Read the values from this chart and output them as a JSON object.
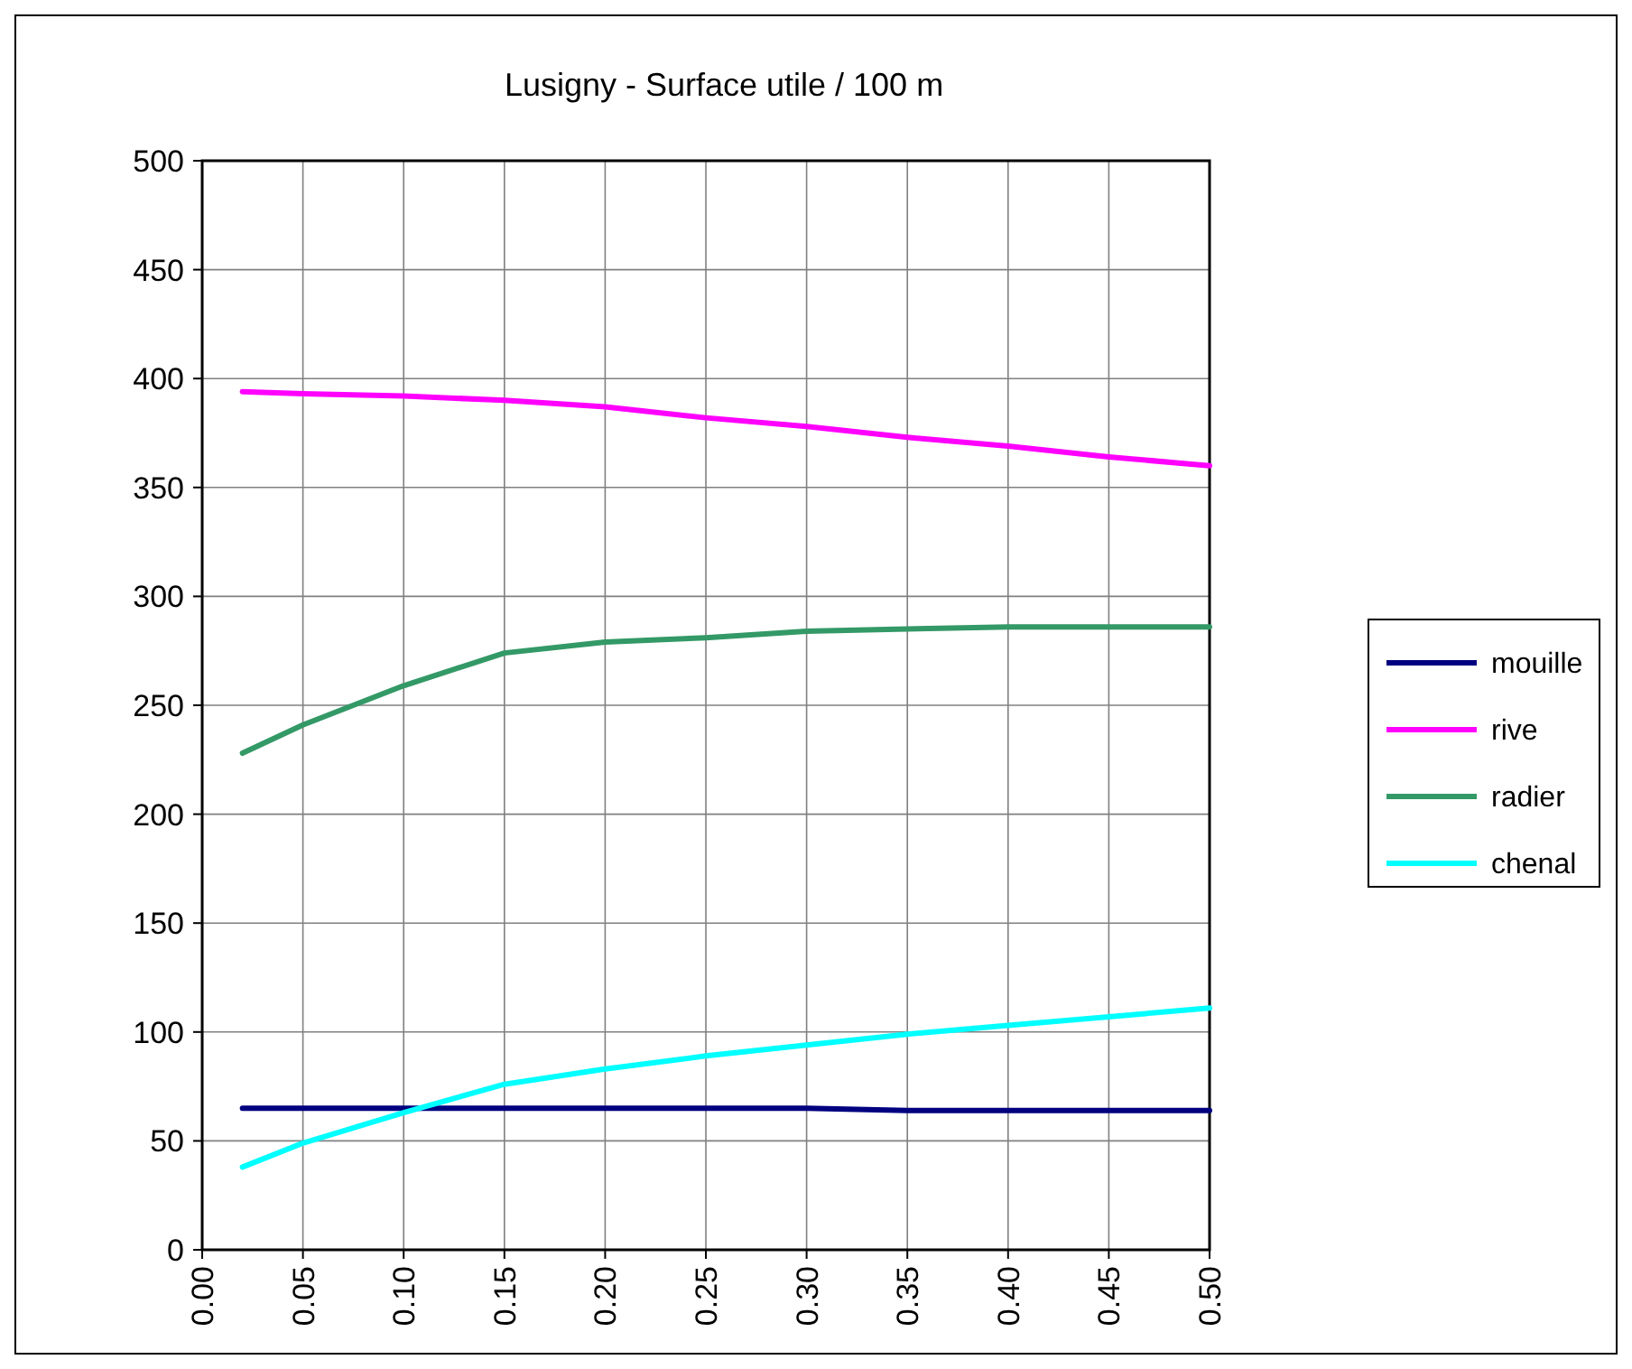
{
  "chart_data": {
    "type": "line",
    "title": "Lusigny - Surface utile / 100 m",
    "x": [
      0.02,
      0.05,
      0.1,
      0.15,
      0.2,
      0.25,
      0.3,
      0.35,
      0.4,
      0.45,
      0.5
    ],
    "series": [
      {
        "name": "mouille",
        "color": "#000080",
        "values": [
          65,
          65,
          65,
          65,
          65,
          65,
          65,
          64,
          64,
          64,
          64
        ]
      },
      {
        "name": "rive",
        "color": "#ff00ff",
        "values": [
          394,
          393,
          392,
          390,
          387,
          382,
          378,
          373,
          369,
          364,
          360
        ]
      },
      {
        "name": "radier",
        "color": "#339966",
        "values": [
          228,
          241,
          259,
          274,
          279,
          281,
          284,
          285,
          286,
          286,
          286
        ]
      },
      {
        "name": "chenal",
        "color": "#00ffff",
        "values": [
          38,
          49,
          63,
          76,
          83,
          89,
          94,
          99,
          103,
          107,
          111
        ]
      }
    ],
    "xlim": [
      0,
      0.5
    ],
    "xticks": [
      {
        "value": 0,
        "label": "0.00"
      },
      {
        "value": 0.05,
        "label": "0.05"
      },
      {
        "value": 0.1,
        "label": "0.10"
      },
      {
        "value": 0.15,
        "label": "0.15"
      },
      {
        "value": 0.2,
        "label": "0.20"
      },
      {
        "value": 0.25,
        "label": "0.25"
      },
      {
        "value": 0.3,
        "label": "0.30"
      },
      {
        "value": 0.35,
        "label": "0.35"
      },
      {
        "value": 0.4,
        "label": "0.40"
      },
      {
        "value": 0.45,
        "label": "0.45"
      },
      {
        "value": 0.5,
        "label": "0.50"
      }
    ],
    "ylim": [
      0,
      500
    ],
    "yticks": [
      0,
      50,
      100,
      150,
      200,
      250,
      300,
      350,
      400,
      450,
      500
    ],
    "grid": true,
    "legend": "right",
    "marker": "none",
    "line_style": "solid"
  }
}
